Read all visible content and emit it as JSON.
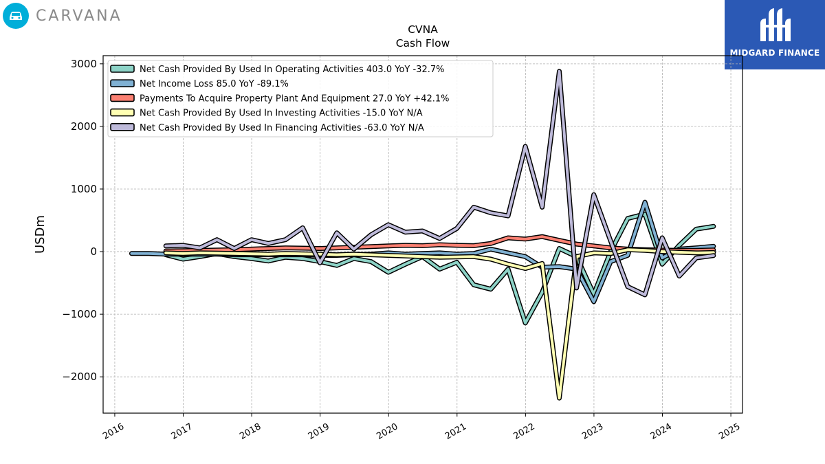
{
  "brand": {
    "name": "CARVANA",
    "logo_icon": "car-icon",
    "color": "#00aed9"
  },
  "partner": {
    "name": "MIDGARD FINANCE",
    "color": "#2b59b5"
  },
  "chart_data": {
    "type": "line",
    "title": "CVNA",
    "subtitle": "Cash Flow",
    "xlabel": "",
    "ylabel": "USDm",
    "xlim": [
      2015.83,
      2025.17
    ],
    "ylim": [
      -2580,
      3130
    ],
    "xticks": [
      2016,
      2017,
      2018,
      2019,
      2020,
      2021,
      2022,
      2023,
      2024,
      2025
    ],
    "yticks": [
      -2000,
      -1000,
      0,
      1000,
      2000,
      3000
    ],
    "ytick_labels": [
      "−2000",
      "−1000",
      "0",
      "1000",
      "2000",
      "3000"
    ],
    "grid": true,
    "legend_position": "top-left",
    "series": [
      {
        "name": "Net Cash Provided By Used In Operating Activities  403.0 YoY -32.7%",
        "color": "#8dd3c7",
        "x": [
          "2016-09-30",
          "2016-12-31",
          "2017-03-31",
          "2017-06-30",
          "2017-09-30",
          "2017-12-31",
          "2018-03-31",
          "2018-06-30",
          "2018-09-30",
          "2018-12-31",
          "2019-03-31",
          "2019-06-30",
          "2019-09-30",
          "2019-12-31",
          "2020-03-31",
          "2020-06-30",
          "2020-09-30",
          "2020-12-31",
          "2021-03-31",
          "2021-06-30",
          "2021-09-30",
          "2021-12-31",
          "2022-03-31",
          "2022-06-30",
          "2022-09-30",
          "2022-12-31",
          "2023-03-31",
          "2023-06-30",
          "2023-09-30",
          "2023-12-31",
          "2024-03-31",
          "2024-06-30",
          "2024-09-30"
        ],
        "y": [
          -50,
          -120,
          -80,
          -30,
          -80,
          -110,
          -150,
          -90,
          -110,
          -160,
          -220,
          -110,
          -160,
          -330,
          -200,
          -80,
          -280,
          -170,
          -530,
          -600,
          -280,
          -1140,
          -650,
          50,
          -80,
          -680,
          0,
          530,
          600,
          -200,
          100,
          360,
          403
        ]
      },
      {
        "name": "Net Income Loss  85.0 YoY -89.1%",
        "color": "#80b1d3",
        "x": [
          "2016-03-31",
          "2016-06-30",
          "2016-09-30",
          "2016-12-31",
          "2017-03-31",
          "2017-06-30",
          "2017-09-30",
          "2017-12-31",
          "2018-03-31",
          "2018-06-30",
          "2018-09-30",
          "2018-12-31",
          "2019-03-31",
          "2019-06-30",
          "2019-09-30",
          "2019-12-31",
          "2020-03-31",
          "2020-06-30",
          "2020-09-30",
          "2020-12-31",
          "2021-03-31",
          "2021-06-30",
          "2021-09-30",
          "2021-12-31",
          "2022-03-31",
          "2022-06-30",
          "2022-09-30",
          "2022-12-31",
          "2023-03-31",
          "2023-06-30",
          "2023-09-30",
          "2023-12-31",
          "2024-03-31",
          "2024-06-30",
          "2024-09-30"
        ],
        "y": [
          -30,
          -30,
          -40,
          -40,
          -40,
          -40,
          -50,
          -50,
          -50,
          -50,
          -50,
          -60,
          -60,
          -50,
          -40,
          -20,
          -40,
          -30,
          -20,
          -40,
          -30,
          40,
          -20,
          -80,
          -250,
          -240,
          -280,
          -800,
          -160,
          -60,
          790,
          -100,
          40,
          60,
          85
        ]
      },
      {
        "name": "Payments To Acquire Property Plant And Equipment  27.0 YoY +42.1%",
        "color": "#fb8072",
        "x": [
          "2016-09-30",
          "2016-12-31",
          "2017-03-31",
          "2017-06-30",
          "2017-09-30",
          "2017-12-31",
          "2018-03-31",
          "2018-06-30",
          "2018-09-30",
          "2018-12-31",
          "2019-03-31",
          "2019-06-30",
          "2019-09-30",
          "2019-12-31",
          "2020-03-31",
          "2020-06-30",
          "2020-09-30",
          "2020-12-31",
          "2021-03-31",
          "2021-06-30",
          "2021-09-30",
          "2021-12-31",
          "2022-03-31",
          "2022-06-30",
          "2022-09-30",
          "2022-12-31",
          "2023-03-31",
          "2023-06-30",
          "2023-09-30",
          "2023-12-31",
          "2024-03-31",
          "2024-06-30",
          "2024-09-30"
        ],
        "y": [
          10,
          15,
          20,
          25,
          30,
          40,
          50,
          60,
          55,
          50,
          60,
          70,
          80,
          90,
          100,
          95,
          110,
          100,
          95,
          130,
          220,
          200,
          240,
          180,
          120,
          90,
          60,
          40,
          30,
          25,
          20,
          20,
          27
        ]
      },
      {
        "name": "Net Cash Provided By Used In Investing Activities  -15.0 YoY N/A",
        "color": "#ffffb3",
        "x": [
          "2016-09-30",
          "2016-12-31",
          "2017-03-31",
          "2017-06-30",
          "2017-09-30",
          "2017-12-31",
          "2018-03-31",
          "2018-06-30",
          "2018-09-30",
          "2018-12-31",
          "2019-03-31",
          "2019-06-30",
          "2019-09-30",
          "2019-12-31",
          "2020-03-31",
          "2020-06-30",
          "2020-09-30",
          "2020-12-31",
          "2021-03-31",
          "2021-06-30",
          "2021-09-30",
          "2021-12-31",
          "2022-03-31",
          "2022-06-30",
          "2022-09-30",
          "2022-12-31",
          "2023-03-31",
          "2023-06-30",
          "2023-09-30",
          "2023-12-31",
          "2024-03-31",
          "2024-06-30",
          "2024-09-30"
        ],
        "y": [
          -20,
          -30,
          -20,
          -25,
          -30,
          -35,
          -40,
          -30,
          -35,
          -40,
          -50,
          -40,
          -50,
          -60,
          -70,
          -80,
          -90,
          -85,
          -80,
          -120,
          -200,
          -270,
          -190,
          -2340,
          -80,
          -20,
          -30,
          30,
          20,
          0,
          -10,
          -20,
          -15
        ]
      },
      {
        "name": "Net Cash Provided By Used In Financing Activities  -63.0 YoY N/A",
        "color": "#bebada",
        "x": [
          "2016-09-30",
          "2016-12-31",
          "2017-03-31",
          "2017-06-30",
          "2017-09-30",
          "2017-12-31",
          "2018-03-31",
          "2018-06-30",
          "2018-09-30",
          "2018-12-31",
          "2019-03-31",
          "2019-06-30",
          "2019-09-30",
          "2019-12-31",
          "2020-03-31",
          "2020-06-30",
          "2020-09-30",
          "2020-12-31",
          "2021-03-31",
          "2021-06-30",
          "2021-09-30",
          "2021-12-31",
          "2022-03-31",
          "2022-06-30",
          "2022-09-30",
          "2022-12-31",
          "2023-03-31",
          "2023-06-30",
          "2023-09-30",
          "2023-12-31",
          "2024-03-31",
          "2024-06-30",
          "2024-09-30"
        ],
        "y": [
          90,
          100,
          60,
          190,
          50,
          190,
          130,
          190,
          380,
          -180,
          300,
          40,
          270,
          430,
          310,
          330,
          210,
          370,
          710,
          620,
          570,
          1680,
          710,
          2880,
          -580,
          910,
          170,
          -560,
          -690,
          220,
          -390,
          -100,
          -63
        ]
      }
    ]
  }
}
